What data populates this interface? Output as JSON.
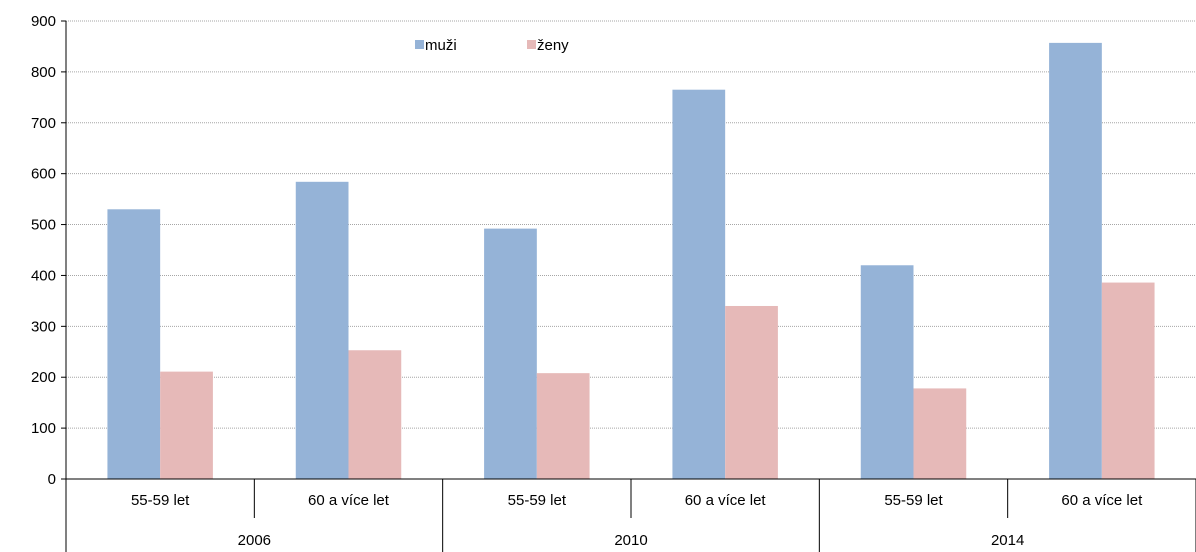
{
  "chart_data": {
    "type": "bar",
    "groups": [
      {
        "label": "2006",
        "categories": [
          "55-59 let",
          "60 a více let"
        ]
      },
      {
        "label": "2010",
        "categories": [
          "55-59 let",
          "60 a více let"
        ]
      },
      {
        "label": "2014",
        "categories": [
          "55-59 let",
          "60 a více let"
        ]
      }
    ],
    "series": [
      {
        "name": "muži",
        "color": "#95b3d7",
        "values": [
          530,
          584,
          492,
          765,
          420,
          857
        ]
      },
      {
        "name": "ženy",
        "color": "#e6b9b8",
        "values": [
          211,
          253,
          208,
          340,
          178,
          386
        ]
      }
    ],
    "ylim": [
      0,
      900
    ],
    "yticks": [
      0,
      100,
      200,
      300,
      400,
      500,
      600,
      700,
      800,
      900
    ],
    "grid": true,
    "legend_position": "top"
  }
}
